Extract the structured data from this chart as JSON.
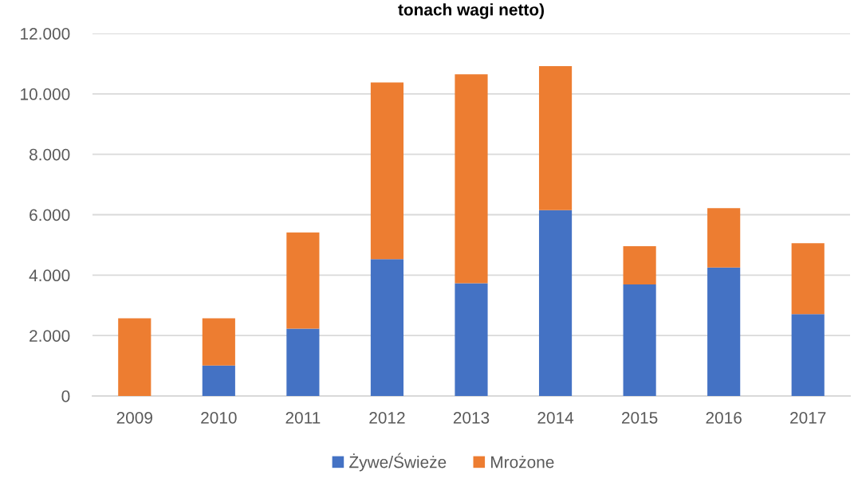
{
  "chart_data": {
    "type": "bar",
    "title": "tonach wagi netto)",
    "categories": [
      "2009",
      "2010",
      "2011",
      "2012",
      "2013",
      "2014",
      "2015",
      "2016",
      "2017"
    ],
    "series": [
      {
        "name": "Żywe/Świeże",
        "color": "#4472c4",
        "values": [
          0,
          1010,
          2230,
          4530,
          3730,
          6150,
          3690,
          4250,
          2710
        ]
      },
      {
        "name": "Mrożone",
        "color": "#ed7d31",
        "values": [
          2570,
          1560,
          3180,
          5850,
          6920,
          4770,
          1270,
          1970,
          2350
        ]
      }
    ],
    "stacked": true,
    "ylim": [
      0,
      12000
    ],
    "yticks": [
      0,
      {
        "value": 2000,
        "label": "2.000"
      },
      {
        "value": 4000,
        "label": "4.000"
      },
      {
        "value": 6000,
        "label": "6.000"
      },
      {
        "value": 8000,
        "label": "8.000"
      },
      {
        "value": 10000,
        "label": "10.000"
      },
      {
        "value": 12000,
        "label": "12.000"
      }
    ],
    "grid": "y",
    "legend": "bottom"
  }
}
